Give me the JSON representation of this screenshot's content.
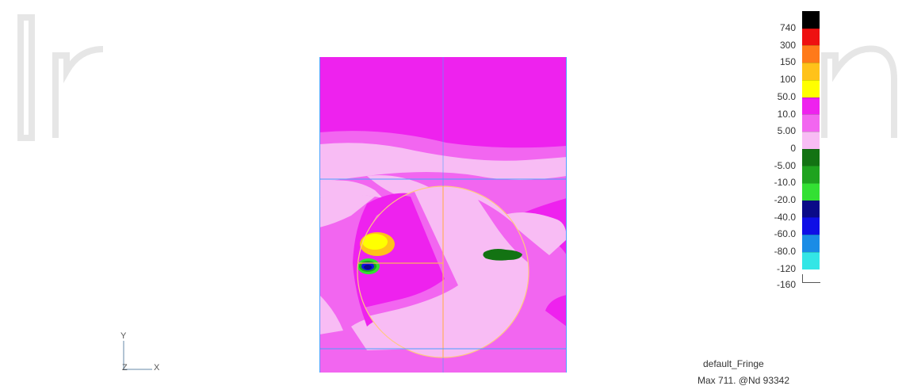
{
  "legend": {
    "levels": [
      {
        "label": "740",
        "color": "#000000"
      },
      {
        "label": "300",
        "color": "#ee1111"
      },
      {
        "label": "150",
        "color": "#ff7a1a"
      },
      {
        "label": "100",
        "color": "#ffc21a"
      },
      {
        "label": "50.0",
        "color": "#ffff00"
      },
      {
        "label": "10.0",
        "color": "#ee22ee"
      },
      {
        "label": "5.00",
        "color": "#f266f0"
      },
      {
        "label": "0",
        "color": "#f8bcf4"
      },
      {
        "label": "-5.00",
        "color": "#137313"
      },
      {
        "label": "-10.0",
        "color": "#1fa31f"
      },
      {
        "label": "-20.0",
        "color": "#33e033"
      },
      {
        "label": "-40.0",
        "color": "#0a0a88"
      },
      {
        "label": "-60.0",
        "color": "#0f0fe6"
      },
      {
        "label": "-80.0",
        "color": "#1a8ce6"
      },
      {
        "label": "-120",
        "color": "#33e6e6"
      },
      {
        "label": "-160",
        "color": "#ffffff"
      }
    ]
  },
  "fringe": {
    "name": "default_Fringe",
    "max": "Max 711. @Nd 93342"
  },
  "triad": {
    "y": "Y",
    "z": "Z",
    "x": "X"
  }
}
